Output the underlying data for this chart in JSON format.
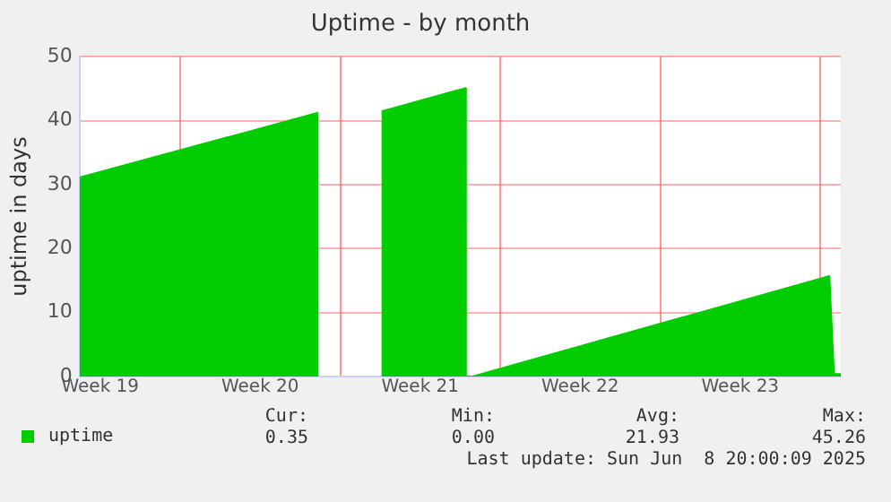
{
  "chart_data": {
    "type": "area",
    "title": "Uptime - by month",
    "ylabel": "uptime in days",
    "x": [
      "2025-05-06T14:24",
      "2025-05-17T00:00",
      "2025-05-17T00:00",
      "2025-05-18T09:36",
      "2025-05-19T20:24",
      "2025-05-19T20:24",
      "2025-05-23T12:00",
      "2025-05-23T12:00",
      "2025-05-23T19:12",
      "2025-06-08T09:36",
      "2025-06-08T14:24",
      "2025-06-08T21:36"
    ],
    "series": [
      {
        "name": "uptime",
        "color": "#00cc00",
        "values": [
          31.1,
          41.2,
          0,
          null,
          0,
          41.5,
          45.1,
          0,
          0,
          15.7,
          0.4,
          0.4
        ]
      }
    ],
    "xlim": [
      "2025-05-06T14:24",
      "2025-06-08T21:36"
    ],
    "xticks": [
      {
        "value": "2025-05-07T12:00",
        "label": "Week 19"
      },
      {
        "value": "2025-05-11",
        "label": null
      },
      {
        "value": "2025-05-14T12:00",
        "label": "Week 20"
      },
      {
        "value": "2025-05-18",
        "label": null
      },
      {
        "value": "2025-05-21T12:00",
        "label": "Week 21"
      },
      {
        "value": "2025-05-25",
        "label": null
      },
      {
        "value": "2025-05-28T12:00",
        "label": "Week 22"
      },
      {
        "value": "2025-06-01",
        "label": null
      },
      {
        "value": "2025-06-04T12:00",
        "label": "Week 23"
      },
      {
        "value": "2025-06-08",
        "label": null
      }
    ],
    "ylim": [
      0,
      50
    ],
    "yticks": [
      0,
      10,
      20,
      30,
      40,
      50
    ],
    "grid": true,
    "legend": "bottom left",
    "annotations": [
      "Cur:",
      "Min:",
      "Avg:",
      "Max:",
      "0.35",
      "0.00",
      "21.93",
      "45.26",
      "Last update: Sun Jun  8 20:00:09 2025"
    ]
  }
}
